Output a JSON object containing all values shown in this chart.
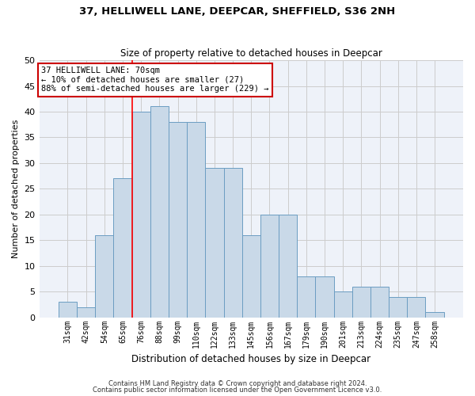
{
  "title1": "37, HELLIWELL LANE, DEEPCAR, SHEFFIELD, S36 2NH",
  "title2": "Size of property relative to detached houses in Deepcar",
  "xlabel": "Distribution of detached houses by size in Deepcar",
  "ylabel": "Number of detached properties",
  "footnote1": "Contains HM Land Registry data © Crown copyright and database right 2024.",
  "footnote2": "Contains public sector information licensed under the Open Government Licence v3.0.",
  "bar_labels": [
    "31sqm",
    "42sqm",
    "54sqm",
    "65sqm",
    "76sqm",
    "88sqm",
    "99sqm",
    "110sqm",
    "122sqm",
    "133sqm",
    "145sqm",
    "156sqm",
    "167sqm",
    "179sqm",
    "190sqm",
    "201sqm",
    "213sqm",
    "224sqm",
    "235sqm",
    "247sqm",
    "258sqm"
  ],
  "bar_values": [
    3,
    2,
    16,
    27,
    40,
    41,
    38,
    38,
    29,
    29,
    16,
    20,
    20,
    8,
    8,
    5,
    6,
    6,
    4,
    4,
    1
  ],
  "bar_color": "#c9d9e8",
  "bar_edge_color": "#6b9dc2",
  "grid_color": "#cccccc",
  "background_color": "#eef2f9",
  "red_line_x": 3.5,
  "annotation_text": "37 HELLIWELL LANE: 70sqm\n← 10% of detached houses are smaller (27)\n88% of semi-detached houses are larger (229) →",
  "annotation_box_color": "#ffffff",
  "annotation_border_color": "#cc0000",
  "ylim": [
    0,
    50
  ],
  "yticks": [
    0,
    5,
    10,
    15,
    20,
    25,
    30,
    35,
    40,
    45,
    50
  ]
}
